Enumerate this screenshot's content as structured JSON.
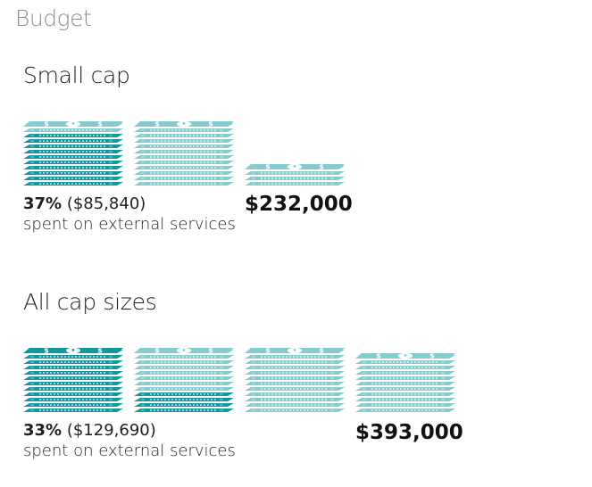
{
  "title": "Budget",
  "colors": {
    "dark": "#13979e",
    "light": "#87cbce",
    "white": "#ffffff"
  },
  "chart_data": [
    {
      "type": "pictogram",
      "title": "Small cap",
      "unit_value": 100000,
      "total": 232000,
      "total_label": "$232,000",
      "external_share_percent": 37,
      "external_amount": 85840,
      "percent_label": "37%",
      "amount_label": "($85,840)",
      "caption": "spent on external services",
      "stacks": [
        {
          "fill": 1.0,
          "dark_fraction": 0.858
        },
        {
          "fill": 1.0,
          "dark_fraction": 0.0
        },
        {
          "fill": 0.32,
          "dark_fraction": 0.0
        }
      ]
    },
    {
      "type": "pictogram",
      "title": "All cap sizes",
      "unit_value": 100000,
      "total": 393000,
      "total_label": "$393,000",
      "external_share_percent": 33,
      "external_amount": 129690,
      "percent_label": "33%",
      "amount_label": "($129,690)",
      "caption": "spent on external services",
      "stacks": [
        {
          "fill": 1.0,
          "dark_fraction": 1.0
        },
        {
          "fill": 1.0,
          "dark_fraction": 0.297
        },
        {
          "fill": 1.0,
          "dark_fraction": 0.0
        },
        {
          "fill": 0.93,
          "dark_fraction": 0.0
        }
      ]
    }
  ]
}
